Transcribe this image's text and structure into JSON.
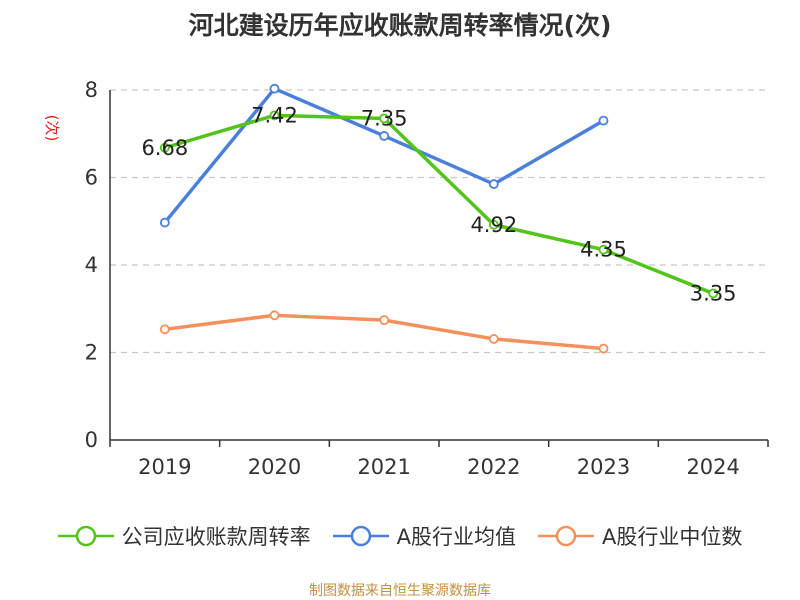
{
  "chart_data": {
    "type": "line",
    "title": "河北建设历年应收账款周转率情况(次)",
    "ylabel": "(次)",
    "xlabel": "",
    "categories": [
      "2019",
      "2020",
      "2021",
      "2022",
      "2023",
      "2024"
    ],
    "ylim": [
      0,
      8
    ],
    "yticks": [
      0,
      2,
      4,
      6,
      8
    ],
    "grid": "horizontal dashed",
    "legend_position": "bottom",
    "series": [
      {
        "name": "公司应收账款周转率",
        "color": "#52c41a",
        "values": [
          6.68,
          7.42,
          7.35,
          4.92,
          4.35,
          3.35
        ],
        "labels": [
          "6.68",
          "7.42",
          "7.35",
          "4.92",
          "4.35",
          "3.35"
        ]
      },
      {
        "name": "A股行业均值",
        "color": "#4a7fdc",
        "values": [
          4.97,
          8.03,
          6.95,
          5.85,
          7.3,
          null
        ]
      },
      {
        "name": "A股行业中位数",
        "color": "#f4905a",
        "values": [
          2.53,
          2.85,
          2.74,
          2.31,
          2.09,
          null
        ]
      }
    ]
  },
  "footer": "制图数据来自恒生聚源数据库"
}
